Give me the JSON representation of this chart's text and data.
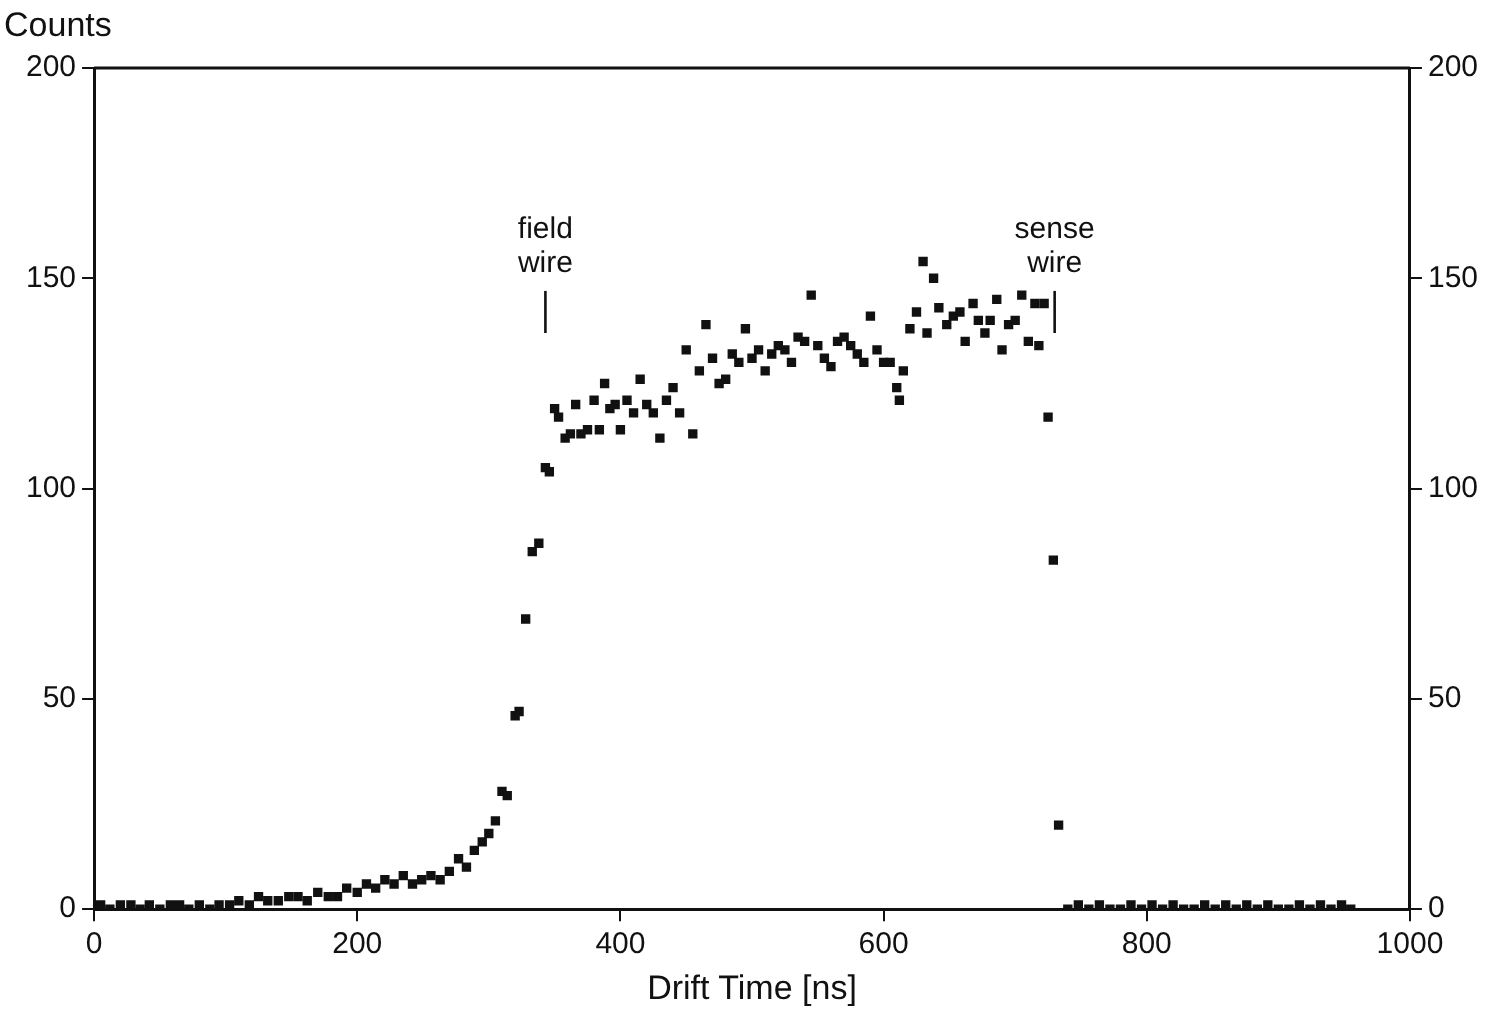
{
  "chart_data": {
    "type": "scatter",
    "xlabel": "Drift Time [ns]",
    "ylabel": "Counts",
    "x": [
      5,
      12,
      20,
      28,
      35,
      42,
      50,
      58,
      65,
      72,
      80,
      88,
      95,
      103,
      110,
      118,
      125,
      132,
      140,
      148,
      155,
      162,
      170,
      178,
      185,
      192,
      200,
      207,
      214,
      221,
      228,
      235,
      242,
      249,
      256,
      263,
      270,
      277,
      283,
      289,
      295,
      300,
      305,
      310,
      314,
      320,
      323,
      328,
      333,
      338,
      343,
      346,
      350,
      353,
      358,
      362,
      366,
      370,
      375,
      380,
      384,
      388,
      392,
      396,
      400,
      405,
      410,
      415,
      420,
      425,
      430,
      435,
      440,
      445,
      450,
      455,
      460,
      465,
      470,
      475,
      480,
      485,
      490,
      495,
      500,
      505,
      510,
      515,
      520,
      525,
      530,
      535,
      540,
      545,
      550,
      555,
      560,
      565,
      570,
      575,
      580,
      585,
      590,
      595,
      600,
      605,
      610,
      612,
      615,
      620,
      625,
      630,
      633,
      638,
      642,
      648,
      653,
      658,
      662,
      668,
      672,
      677,
      681,
      686,
      690,
      695,
      700,
      705,
      710,
      715,
      718,
      722,
      725,
      729,
      733,
      740,
      748,
      756,
      764,
      772,
      780,
      788,
      796,
      804,
      812,
      820,
      828,
      836,
      844,
      852,
      860,
      868,
      876,
      884,
      892,
      900,
      908,
      916,
      924,
      932,
      940,
      948,
      955
    ],
    "values": [
      1,
      0,
      1,
      1,
      0,
      1,
      0,
      1,
      1,
      0,
      1,
      0,
      1,
      1,
      2,
      1,
      3,
      2,
      2,
      3,
      3,
      2,
      4,
      3,
      3,
      5,
      4,
      6,
      5,
      7,
      6,
      8,
      6,
      7,
      8,
      7,
      9,
      12,
      10,
      14,
      16,
      18,
      21,
      28,
      27,
      46,
      47,
      69,
      85,
      87,
      105,
      104,
      119,
      117,
      112,
      113,
      120,
      113,
      114,
      121,
      114,
      125,
      119,
      120,
      114,
      121,
      118,
      126,
      120,
      118,
      112,
      121,
      124,
      118,
      133,
      113,
      128,
      139,
      131,
      125,
      126,
      132,
      130,
      138,
      131,
      133,
      128,
      132,
      134,
      133,
      130,
      136,
      135,
      146,
      134,
      131,
      129,
      135,
      136,
      134,
      132,
      130,
      141,
      133,
      130,
      130,
      124,
      121,
      128,
      138,
      142,
      154,
      137,
      150,
      143,
      139,
      141,
      142,
      135,
      144,
      140,
      137,
      140,
      145,
      133,
      139,
      140,
      146,
      135,
      144,
      134,
      144,
      117,
      83,
      20,
      0,
      1,
      0,
      1,
      0,
      0,
      1,
      0,
      1,
      0,
      1,
      0,
      0,
      1,
      0,
      1,
      0,
      1,
      0,
      1,
      0,
      0,
      1,
      0,
      1,
      0,
      1,
      0
    ],
    "color": "#111111",
    "marker": "square",
    "xlim": [
      0,
      1000
    ],
    "xticks": [
      0,
      200,
      400,
      600,
      800,
      1000
    ],
    "ylim": [
      0,
      200
    ],
    "yticks": [
      0,
      50,
      100,
      150,
      200
    ],
    "y2lim": [
      0,
      200
    ],
    "y2ticks": [
      0,
      50,
      100,
      150,
      200
    ],
    "ref_lines": [
      {
        "axis": "x",
        "value": 343,
        "label": "field\nwire"
      },
      {
        "axis": "x",
        "value": 730,
        "label": "sense\nwire"
      }
    ],
    "grid": false,
    "legend": false
  }
}
